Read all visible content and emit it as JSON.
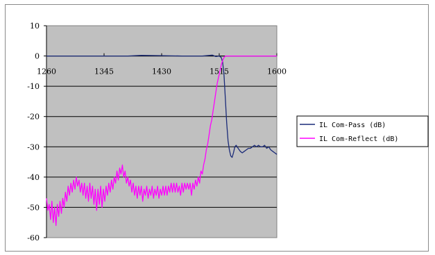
{
  "chart_data": {
    "type": "line",
    "title": "",
    "xlabel": "",
    "ylabel": "",
    "x_ticks": [
      1260,
      1345,
      1430,
      1515,
      1600
    ],
    "y_ticks": [
      10,
      0,
      -10,
      -20,
      -30,
      -40,
      -50,
      -60
    ],
    "xlim": [
      1260,
      1600
    ],
    "ylim": [
      -60,
      10
    ],
    "grid": "horizontal",
    "legend_position": "right",
    "plot_background": "#c0c0c0",
    "series": [
      {
        "name": "IL Com-Pass (dB)",
        "color": "#1a2a78",
        "points": [
          [
            1260,
            0
          ],
          [
            1300,
            0
          ],
          [
            1345,
            0
          ],
          [
            1380,
            0
          ],
          [
            1400,
            0.2
          ],
          [
            1430,
            0.1
          ],
          [
            1460,
            0
          ],
          [
            1490,
            0
          ],
          [
            1505,
            0.3
          ],
          [
            1510,
            -0.2
          ],
          [
            1515,
            0
          ],
          [
            1518,
            -0.5
          ],
          [
            1520,
            -2
          ],
          [
            1522,
            -6
          ],
          [
            1524,
            -14
          ],
          [
            1526,
            -22
          ],
          [
            1528,
            -28
          ],
          [
            1530,
            -31
          ],
          [
            1532,
            -33
          ],
          [
            1534,
            -33.5
          ],
          [
            1536,
            -32
          ],
          [
            1538,
            -30
          ],
          [
            1540,
            -29.5
          ],
          [
            1543,
            -30.5
          ],
          [
            1546,
            -31.5
          ],
          [
            1549,
            -32
          ],
          [
            1552,
            -31.5
          ],
          [
            1555,
            -31
          ],
          [
            1558,
            -30.5
          ],
          [
            1561,
            -30.5
          ],
          [
            1564,
            -30
          ],
          [
            1567,
            -29.5
          ],
          [
            1570,
            -30
          ],
          [
            1573,
            -29.5
          ],
          [
            1576,
            -30
          ],
          [
            1579,
            -30
          ],
          [
            1582,
            -29.5
          ],
          [
            1585,
            -30.5
          ],
          [
            1588,
            -30
          ],
          [
            1591,
            -31
          ],
          [
            1594,
            -31.5
          ],
          [
            1597,
            -32
          ],
          [
            1600,
            -32.5
          ]
        ]
      },
      {
        "name": "IL Com-Reflect (dB)",
        "color": "#ff00ff",
        "points": [
          [
            1260,
            -47
          ],
          [
            1262,
            -51
          ],
          [
            1264,
            -49
          ],
          [
            1266,
            -54
          ],
          [
            1268,
            -48
          ],
          [
            1270,
            -55
          ],
          [
            1272,
            -50
          ],
          [
            1274,
            -56
          ],
          [
            1276,
            -49
          ],
          [
            1278,
            -53
          ],
          [
            1280,
            -48
          ],
          [
            1282,
            -52
          ],
          [
            1284,
            -47
          ],
          [
            1286,
            -50
          ],
          [
            1288,
            -45
          ],
          [
            1290,
            -48
          ],
          [
            1292,
            -43
          ],
          [
            1294,
            -46
          ],
          [
            1296,
            -42
          ],
          [
            1298,
            -45
          ],
          [
            1300,
            -41
          ],
          [
            1302,
            -44
          ],
          [
            1304,
            -40
          ],
          [
            1306,
            -43
          ],
          [
            1308,
            -41
          ],
          [
            1310,
            -45
          ],
          [
            1312,
            -42
          ],
          [
            1314,
            -46
          ],
          [
            1316,
            -42
          ],
          [
            1318,
            -47
          ],
          [
            1320,
            -43
          ],
          [
            1322,
            -48
          ],
          [
            1324,
            -42
          ],
          [
            1326,
            -47
          ],
          [
            1328,
            -43
          ],
          [
            1330,
            -49
          ],
          [
            1332,
            -44
          ],
          [
            1334,
            -51
          ],
          [
            1336,
            -44
          ],
          [
            1338,
            -49
          ],
          [
            1340,
            -43
          ],
          [
            1342,
            -50
          ],
          [
            1344,
            -44
          ],
          [
            1346,
            -48
          ],
          [
            1348,
            -43
          ],
          [
            1350,
            -46
          ],
          [
            1352,
            -42
          ],
          [
            1354,
            -45
          ],
          [
            1356,
            -41
          ],
          [
            1358,
            -44
          ],
          [
            1360,
            -40
          ],
          [
            1362,
            -42
          ],
          [
            1364,
            -38
          ],
          [
            1366,
            -41
          ],
          [
            1368,
            -37
          ],
          [
            1370,
            -39
          ],
          [
            1372,
            -36
          ],
          [
            1374,
            -40
          ],
          [
            1376,
            -38
          ],
          [
            1378,
            -42
          ],
          [
            1380,
            -40
          ],
          [
            1382,
            -43
          ],
          [
            1384,
            -41
          ],
          [
            1386,
            -45
          ],
          [
            1388,
            -42
          ],
          [
            1390,
            -46
          ],
          [
            1392,
            -43
          ],
          [
            1394,
            -47
          ],
          [
            1396,
            -43
          ],
          [
            1398,
            -46
          ],
          [
            1400,
            -43
          ],
          [
            1402,
            -48
          ],
          [
            1404,
            -44
          ],
          [
            1406,
            -46
          ],
          [
            1408,
            -43
          ],
          [
            1410,
            -47
          ],
          [
            1412,
            -44
          ],
          [
            1414,
            -46
          ],
          [
            1416,
            -43
          ],
          [
            1418,
            -47
          ],
          [
            1420,
            -44
          ],
          [
            1422,
            -46
          ],
          [
            1424,
            -43
          ],
          [
            1426,
            -47
          ],
          [
            1428,
            -44
          ],
          [
            1430,
            -46
          ],
          [
            1432,
            -43
          ],
          [
            1434,
            -46
          ],
          [
            1436,
            -43
          ],
          [
            1438,
            -46
          ],
          [
            1440,
            -43
          ],
          [
            1442,
            -45
          ],
          [
            1444,
            -42
          ],
          [
            1446,
            -45
          ],
          [
            1448,
            -42
          ],
          [
            1450,
            -45
          ],
          [
            1452,
            -42
          ],
          [
            1454,
            -45
          ],
          [
            1456,
            -43
          ],
          [
            1458,
            -46
          ],
          [
            1460,
            -42
          ],
          [
            1462,
            -45
          ],
          [
            1464,
            -42
          ],
          [
            1466,
            -44
          ],
          [
            1468,
            -42
          ],
          [
            1470,
            -44
          ],
          [
            1472,
            -42
          ],
          [
            1474,
            -46
          ],
          [
            1476,
            -42
          ],
          [
            1478,
            -44
          ],
          [
            1480,
            -41
          ],
          [
            1482,
            -43
          ],
          [
            1484,
            -40
          ],
          [
            1486,
            -42
          ],
          [
            1488,
            -38
          ],
          [
            1490,
            -39
          ],
          [
            1492,
            -36
          ],
          [
            1494,
            -34
          ],
          [
            1496,
            -31
          ],
          [
            1498,
            -29
          ],
          [
            1500,
            -26
          ],
          [
            1502,
            -23
          ],
          [
            1504,
            -21
          ],
          [
            1506,
            -18
          ],
          [
            1508,
            -15
          ],
          [
            1510,
            -12
          ],
          [
            1512,
            -9
          ],
          [
            1514,
            -7
          ],
          [
            1516,
            -5
          ],
          [
            1518,
            -3
          ],
          [
            1520,
            -1.5
          ],
          [
            1522,
            -0.5
          ],
          [
            1524,
            0
          ],
          [
            1530,
            0
          ],
          [
            1560,
            0
          ],
          [
            1600,
            0
          ]
        ]
      }
    ]
  }
}
